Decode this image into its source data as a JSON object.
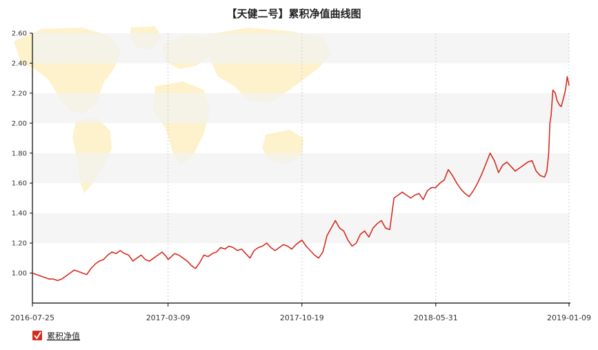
{
  "chart_data": {
    "type": "line",
    "title": "【天健二号】累积净值曲线图",
    "xlabel": "",
    "ylabel": "",
    "ylim": [
      0.8,
      2.6
    ],
    "y_ticks": [
      "1.00",
      "1.20",
      "1.40",
      "1.60",
      "1.80",
      "2.00",
      "2.20",
      "2.40",
      "2.60"
    ],
    "x_ticks": [
      "2016-07-25",
      "2017-03-09",
      "2017-10-19",
      "2018-05-31",
      "2019-01-09"
    ],
    "grid": "alternating horizontal bands, dotted vertical lines",
    "legend_position": "bottom-left",
    "colors": {
      "line": "#d42b1e",
      "band": "#f2f2f2",
      "map": "#fdf1c6"
    },
    "series": [
      {
        "name": "累积净值",
        "points": [
          [
            "2016-07-25",
            1.0
          ],
          [
            "2016-08-01",
            0.99
          ],
          [
            "2016-08-08",
            0.98
          ],
          [
            "2016-08-15",
            0.97
          ],
          [
            "2016-08-22",
            0.96
          ],
          [
            "2016-08-29",
            0.96
          ],
          [
            "2016-09-05",
            0.95
          ],
          [
            "2016-09-12",
            0.96
          ],
          [
            "2016-09-19",
            0.98
          ],
          [
            "2016-09-26",
            1.0
          ],
          [
            "2016-10-03",
            1.02
          ],
          [
            "2016-10-10",
            1.01
          ],
          [
            "2016-10-17",
            1.0
          ],
          [
            "2016-10-24",
            0.99
          ],
          [
            "2016-10-31",
            1.03
          ],
          [
            "2016-11-07",
            1.06
          ],
          [
            "2016-11-14",
            1.08
          ],
          [
            "2016-11-21",
            1.09
          ],
          [
            "2016-11-28",
            1.12
          ],
          [
            "2016-12-05",
            1.14
          ],
          [
            "2016-12-12",
            1.13
          ],
          [
            "2016-12-19",
            1.15
          ],
          [
            "2016-12-26",
            1.13
          ],
          [
            "2017-01-02",
            1.12
          ],
          [
            "2017-01-09",
            1.08
          ],
          [
            "2017-01-16",
            1.1
          ],
          [
            "2017-01-23",
            1.12
          ],
          [
            "2017-01-30",
            1.09
          ],
          [
            "2017-02-06",
            1.08
          ],
          [
            "2017-02-13",
            1.1
          ],
          [
            "2017-02-20",
            1.12
          ],
          [
            "2017-02-27",
            1.14
          ],
          [
            "2017-03-06",
            1.11
          ],
          [
            "2017-03-09",
            1.09
          ],
          [
            "2017-03-20",
            1.13
          ],
          [
            "2017-03-27",
            1.12
          ],
          [
            "2017-04-03",
            1.1
          ],
          [
            "2017-04-10",
            1.08
          ],
          [
            "2017-04-17",
            1.05
          ],
          [
            "2017-04-24",
            1.03
          ],
          [
            "2017-05-01",
            1.07
          ],
          [
            "2017-05-08",
            1.12
          ],
          [
            "2017-05-15",
            1.11
          ],
          [
            "2017-05-22",
            1.13
          ],
          [
            "2017-05-29",
            1.14
          ],
          [
            "2017-06-05",
            1.17
          ],
          [
            "2017-06-12",
            1.16
          ],
          [
            "2017-06-19",
            1.18
          ],
          [
            "2017-06-26",
            1.17
          ],
          [
            "2017-07-03",
            1.15
          ],
          [
            "2017-07-10",
            1.16
          ],
          [
            "2017-07-17",
            1.13
          ],
          [
            "2017-07-24",
            1.1
          ],
          [
            "2017-07-31",
            1.15
          ],
          [
            "2017-08-07",
            1.17
          ],
          [
            "2017-08-14",
            1.18
          ],
          [
            "2017-08-21",
            1.2
          ],
          [
            "2017-08-28",
            1.17
          ],
          [
            "2017-09-04",
            1.15
          ],
          [
            "2017-09-11",
            1.17
          ],
          [
            "2017-09-18",
            1.19
          ],
          [
            "2017-09-25",
            1.18
          ],
          [
            "2017-10-02",
            1.16
          ],
          [
            "2017-10-09",
            1.19
          ],
          [
            "2017-10-19",
            1.22
          ],
          [
            "2017-10-26",
            1.18
          ],
          [
            "2017-11-02",
            1.15
          ],
          [
            "2017-11-09",
            1.12
          ],
          [
            "2017-11-16",
            1.1
          ],
          [
            "2017-11-23",
            1.14
          ],
          [
            "2017-11-30",
            1.25
          ],
          [
            "2017-12-07",
            1.3
          ],
          [
            "2017-12-14",
            1.35
          ],
          [
            "2017-12-21",
            1.3
          ],
          [
            "2017-12-28",
            1.28
          ],
          [
            "2018-01-04",
            1.22
          ],
          [
            "2018-01-11",
            1.18
          ],
          [
            "2018-01-18",
            1.2
          ],
          [
            "2018-01-25",
            1.26
          ],
          [
            "2018-02-01",
            1.28
          ],
          [
            "2018-02-08",
            1.24
          ],
          [
            "2018-02-15",
            1.3
          ],
          [
            "2018-02-22",
            1.33
          ],
          [
            "2018-03-01",
            1.35
          ],
          [
            "2018-03-08",
            1.3
          ],
          [
            "2018-03-15",
            1.29
          ],
          [
            "2018-03-22",
            1.5
          ],
          [
            "2018-03-29",
            1.52
          ],
          [
            "2018-04-05",
            1.54
          ],
          [
            "2018-04-12",
            1.52
          ],
          [
            "2018-04-19",
            1.5
          ],
          [
            "2018-04-26",
            1.52
          ],
          [
            "2018-05-03",
            1.53
          ],
          [
            "2018-05-10",
            1.49
          ],
          [
            "2018-05-17",
            1.55
          ],
          [
            "2018-05-24",
            1.57
          ],
          [
            "2018-05-31",
            1.57
          ],
          [
            "2018-06-07",
            1.6
          ],
          [
            "2018-06-14",
            1.62
          ],
          [
            "2018-06-21",
            1.69
          ],
          [
            "2018-06-28",
            1.65
          ],
          [
            "2018-07-05",
            1.6
          ],
          [
            "2018-07-12",
            1.56
          ],
          [
            "2018-07-19",
            1.53
          ],
          [
            "2018-07-26",
            1.51
          ],
          [
            "2018-08-02",
            1.55
          ],
          [
            "2018-08-09",
            1.6
          ],
          [
            "2018-08-16",
            1.66
          ],
          [
            "2018-08-23",
            1.73
          ],
          [
            "2018-08-30",
            1.8
          ],
          [
            "2018-09-06",
            1.75
          ],
          [
            "2018-09-13",
            1.67
          ],
          [
            "2018-09-20",
            1.72
          ],
          [
            "2018-09-27",
            1.74
          ],
          [
            "2018-10-04",
            1.71
          ],
          [
            "2018-10-11",
            1.68
          ],
          [
            "2018-10-18",
            1.7
          ],
          [
            "2018-10-25",
            1.72
          ],
          [
            "2018-11-01",
            1.74
          ],
          [
            "2018-11-08",
            1.75
          ],
          [
            "2018-11-15",
            1.68
          ],
          [
            "2018-11-22",
            1.65
          ],
          [
            "2018-11-29",
            1.64
          ],
          [
            "2018-12-03",
            1.68
          ],
          [
            "2018-12-06",
            1.8
          ],
          [
            "2018-12-08",
            2.0
          ],
          [
            "2018-12-10",
            2.05
          ],
          [
            "2018-12-13",
            2.22
          ],
          [
            "2018-12-17",
            2.2
          ],
          [
            "2018-12-20",
            2.15
          ],
          [
            "2018-12-24",
            2.12
          ],
          [
            "2018-12-27",
            2.11
          ],
          [
            "2018-12-31",
            2.17
          ],
          [
            "2019-01-03",
            2.22
          ],
          [
            "2019-01-06",
            2.31
          ],
          [
            "2019-01-09",
            2.25
          ]
        ]
      }
    ]
  }
}
